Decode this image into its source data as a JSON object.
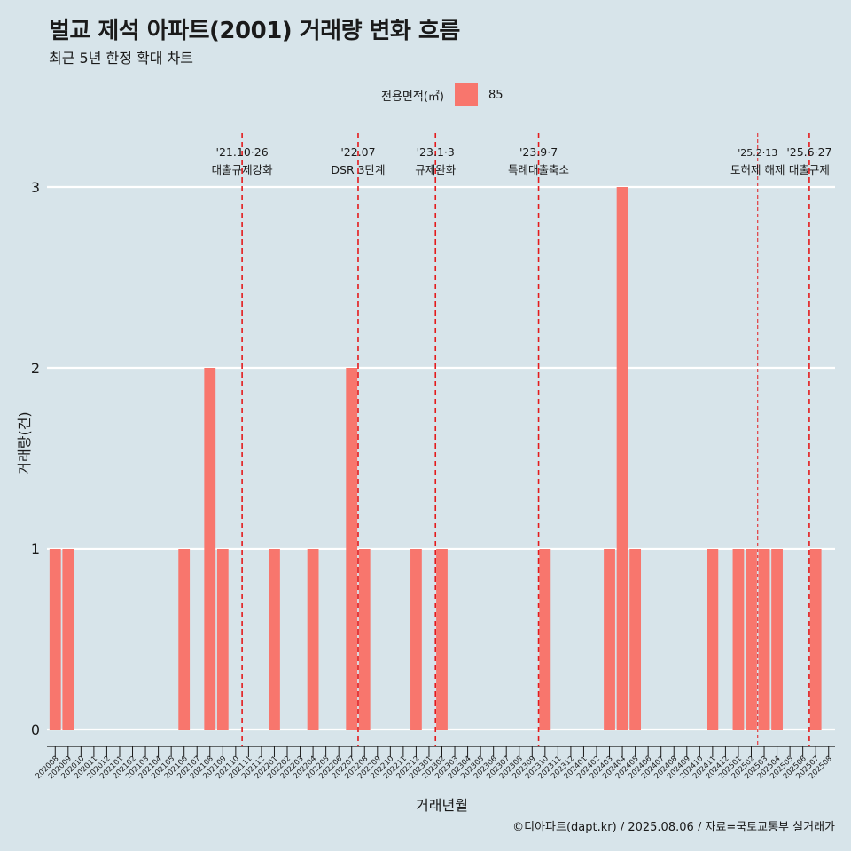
{
  "page": {
    "title": "벌교 제석 아파트(2001) 거래량 변화 흐름",
    "subtitle": "최근 5년 한정 확대 차트",
    "caption": "©디아파트(dapt.kr) / 2025.08.06 / 자료=국토교통부 실거래가"
  },
  "legend": {
    "title": "전용면적(㎡)",
    "items": [
      {
        "label": "85",
        "color": "#f8766d"
      }
    ]
  },
  "chart_data": {
    "type": "bar",
    "title": "벌교 제석 아파트(2001) 거래량 변화 흐름",
    "subtitle": "최근 5년 한정 확대 차트",
    "xlabel": "거래년월",
    "ylabel": "거래량(건)",
    "ylim": [
      0,
      3
    ],
    "yticks": [
      0,
      1,
      2,
      3
    ],
    "grid": true,
    "legend_position": "top",
    "bar_color": "#f8766d",
    "categories": [
      "202008",
      "202009",
      "202010",
      "202011",
      "202012",
      "202101",
      "202102",
      "202103",
      "202104",
      "202105",
      "202106",
      "202107",
      "202108",
      "202109",
      "202110",
      "202111",
      "202112",
      "202201",
      "202202",
      "202203",
      "202204",
      "202205",
      "202206",
      "202207",
      "202208",
      "202209",
      "202210",
      "202211",
      "202212",
      "202301",
      "202302",
      "202303",
      "202304",
      "202305",
      "202306",
      "202307",
      "202308",
      "202309",
      "202310",
      "202311",
      "202312",
      "202401",
      "202402",
      "202403",
      "202404",
      "202405",
      "202406",
      "202407",
      "202408",
      "202409",
      "202410",
      "202411",
      "202412",
      "202501",
      "202502",
      "202503",
      "202504",
      "202505",
      "202506",
      "202507",
      "202508"
    ],
    "series": [
      {
        "name": "85",
        "values": [
          1,
          1,
          0,
          0,
          0,
          0,
          0,
          0,
          0,
          0,
          1,
          0,
          2,
          1,
          0,
          0,
          0,
          1,
          0,
          0,
          1,
          0,
          0,
          2,
          1,
          0,
          0,
          0,
          1,
          0,
          1,
          0,
          0,
          0,
          0,
          0,
          0,
          0,
          1,
          0,
          0,
          0,
          0,
          1,
          3,
          1,
          0,
          0,
          0,
          0,
          0,
          1,
          0,
          1,
          1,
          1,
          1,
          0,
          0,
          1,
          0
        ]
      }
    ],
    "annotations": [
      {
        "date": "'21.10·26",
        "label": "대출규제강화",
        "after_category": "202110",
        "line_width": "bold"
      },
      {
        "date": "'22.07",
        "label": "DSR 3단계",
        "after_category": "202207",
        "line_width": "bold"
      },
      {
        "date": "'23.1·3",
        "label": "규제완화",
        "after_category": "202301",
        "line_width": "bold"
      },
      {
        "date": "'23.9·7",
        "label": "특례대출축소",
        "after_category": "202309",
        "line_width": "bold"
      },
      {
        "date": "'25.2·13",
        "label": "토허제 해제",
        "after_category": "202502",
        "line_width": "thin"
      },
      {
        "date": "'25.6·27",
        "label": "대출규제",
        "after_category": "202506",
        "line_width": "bold"
      }
    ]
  }
}
